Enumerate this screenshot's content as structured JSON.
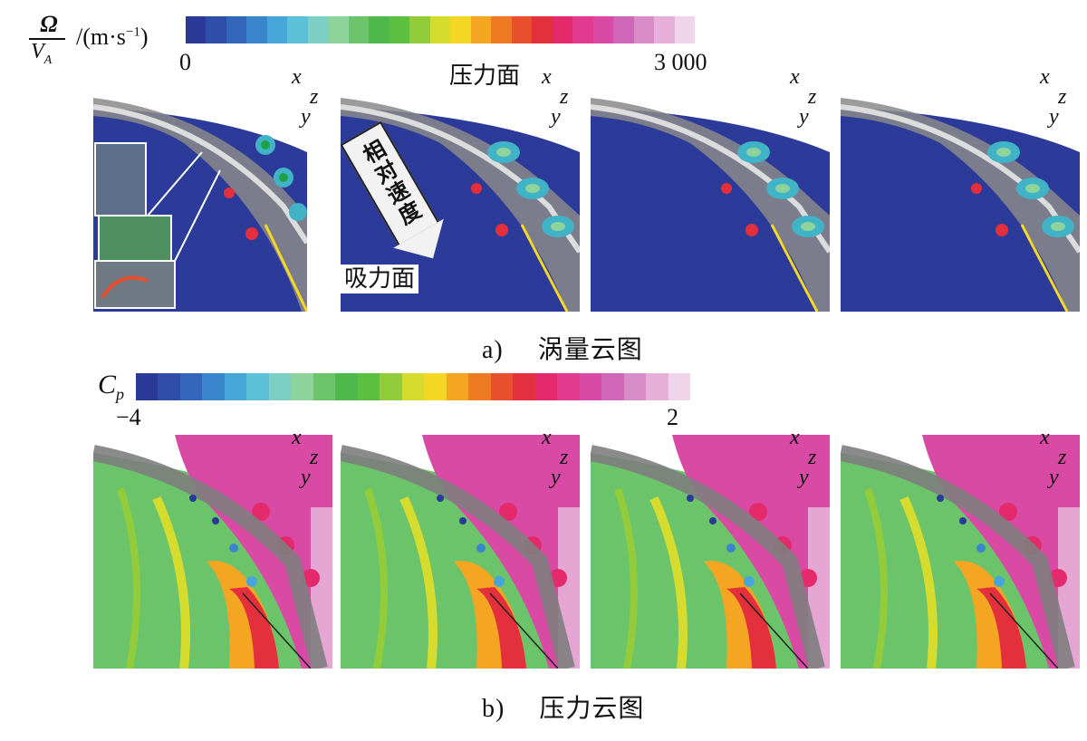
{
  "top_colorbar": {
    "title_numerator": "Ω",
    "title_denominator": "V",
    "title_denominator_sub": "A",
    "unit": "/(m·s",
    "unit_exp": "−1",
    "unit_close": ")",
    "min_label": "0",
    "max_label": "3 000",
    "colors": [
      "#2b3a96",
      "#2f4ea8",
      "#3366bb",
      "#3a86cc",
      "#46a6d9",
      "#5cc0d9",
      "#7ccfc4",
      "#8fd39c",
      "#6cc46a",
      "#4fb84a",
      "#5bbf3f",
      "#92cc3a",
      "#d6dc2e",
      "#f4d825",
      "#f4a623",
      "#ef7a24",
      "#e84f2c",
      "#e4303d",
      "#e42a6a",
      "#e23a8e",
      "#d94aa5",
      "#cf66b8",
      "#d88cc8",
      "#e6b0da",
      "#f0d4ea"
    ]
  },
  "bottom_colorbar": {
    "title": "C",
    "title_sub": "p",
    "min_label": "−4",
    "max_label": "2",
    "colors": [
      "#2b3a96",
      "#2f4ea8",
      "#3366bb",
      "#3a86cc",
      "#46a6d9",
      "#5cc0d9",
      "#7ccfc4",
      "#8fd39c",
      "#6cc46a",
      "#4fb84a",
      "#5bbf3f",
      "#92cc3a",
      "#d6dc2e",
      "#f4d825",
      "#f4a623",
      "#ef7a24",
      "#e84f2c",
      "#e4303d",
      "#e42a6a",
      "#e23a8e",
      "#d94aa5",
      "#cf66b8",
      "#d88cc8",
      "#e6b0da",
      "#f0d4ea"
    ]
  },
  "labels": {
    "pressure_side": "压力面",
    "suction_side": "吸力面",
    "relative_velocity": "相对速度"
  },
  "axes": {
    "x": "x",
    "y": "y",
    "z": "z"
  },
  "captions": {
    "a_letter": "a)",
    "a_text": "涡量云图",
    "b_letter": "b)",
    "b_text": "压力云图"
  }
}
